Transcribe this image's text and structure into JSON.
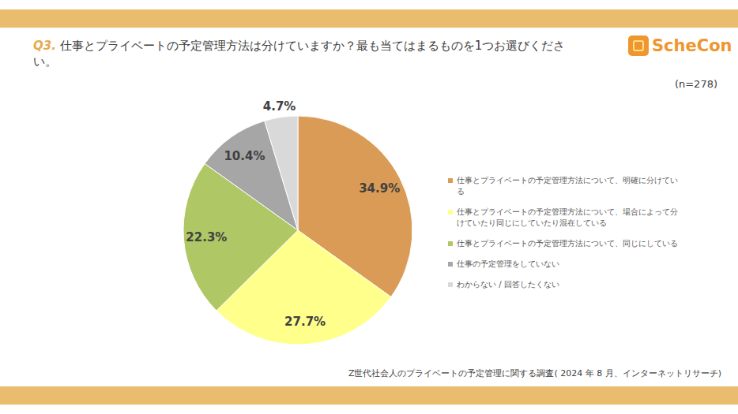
{
  "chart_data": {
    "type": "pie",
    "title": "Q3. 仕事とプライベートの予定管理方法は分けていますか？最も当てはまるものを1つお選びください。",
    "annotations": {
      "sample": "(n=278)",
      "source": "Z世代社会人のプライベートの予定管理に関する調査( 2024 年 8 月、インターネットリサーチ)",
      "logo": "ScheCon"
    },
    "categories": [
      "仕事とプライベートの予定管理方法について、明確に分けている",
      "仕事とプライベートの予定管理方法について、場合によって分けていたり同じにしていたり混在している",
      "仕事とプライベートの予定管理方法について、同じにしている",
      "仕事の予定管理をしていない",
      "わからない / 回答したくない"
    ],
    "values": [
      34.9,
      27.7,
      22.3,
      10.4,
      4.7
    ],
    "value_labels": [
      "34.9%",
      "27.7%",
      "22.3%",
      "10.4%",
      "4.7%"
    ],
    "colors": [
      "#D99B55",
      "#FFFF8C",
      "#AFC764",
      "#A6A6A6",
      "#D9D9D9"
    ],
    "data_labels": true,
    "legend": "right"
  }
}
